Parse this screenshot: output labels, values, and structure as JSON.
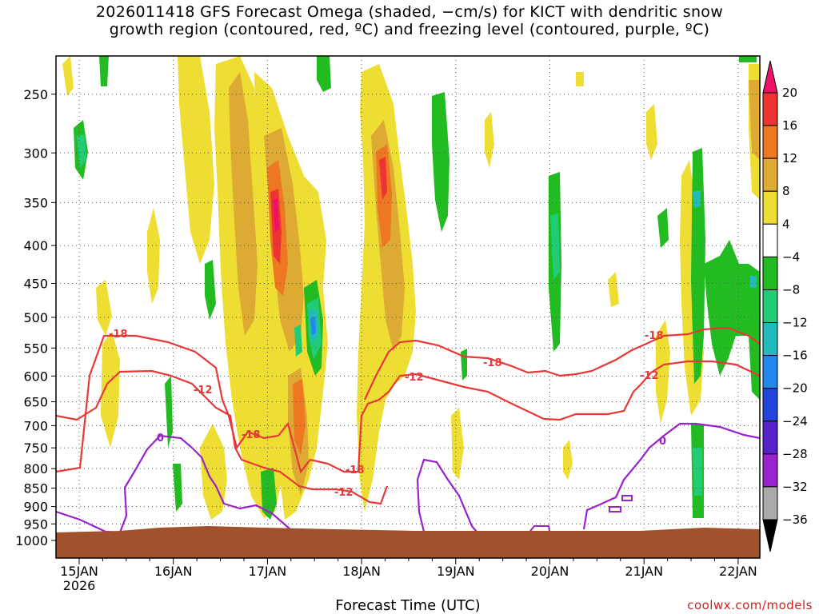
{
  "title_line1": "2026011418 GFS Forecast Omega (shaded, −cm/s) for KICT with dendritic snow",
  "title_line2": "growth region (contoured, red, ºC) and freezing level (contoured, purple, ºC)",
  "credit": "coolwx.com/models",
  "chart_data": {
    "type": "heatmap",
    "title": "2026011418 GFS Forecast Omega (shaded, −cm/s) for KICT with dendritic snow growth region (contoured, red, ºC) and freezing level (contoured, purple, ºC)",
    "xlabel": "Forecast Time (UTC)",
    "ylabel": "",
    "x_range": [
      "2026-01-14 18Z",
      "2026-01-22 06Z"
    ],
    "x_ticks": [
      "15JAN",
      "16JAN",
      "17JAN",
      "18JAN",
      "19JAN",
      "20JAN",
      "21JAN",
      "22JAN"
    ],
    "x_tick_sublabel": "2026",
    "y_axis": "pressure (hPa), inverted",
    "y_ticks": [
      250,
      300,
      350,
      400,
      450,
      500,
      550,
      600,
      650,
      700,
      750,
      800,
      850,
      900,
      950,
      1000
    ],
    "ylim": [
      1000,
      200
    ],
    "grid": true,
    "colorbar": {
      "labels": [
        20,
        16,
        12,
        8,
        4,
        -4,
        -8,
        -12,
        -16,
        -20,
        -24,
        -28,
        -32,
        -36
      ],
      "colors": [
        "#ee1166",
        "#ee3333",
        "#ee7722",
        "#ddaa33",
        "#eedd33",
        "#ffffff",
        "#22bb22",
        "#22cc77",
        "#22bbbb",
        "#2288ee",
        "#2244dd",
        "#5522cc",
        "#9922cc",
        "#aaaaaa",
        "#000000"
      ]
    },
    "contour_labels": [
      {
        "value": "-18",
        "color": "#e83838"
      },
      {
        "value": "-12",
        "color": "#e83838"
      },
      {
        "value": "-18",
        "color": "#e83838"
      },
      {
        "value": "-18",
        "color": "#e83838"
      },
      {
        "value": "-12",
        "color": "#e83838"
      },
      {
        "value": "-12",
        "color": "#e83838"
      },
      {
        "value": "-18",
        "color": "#e83838"
      },
      {
        "value": "-18",
        "color": "#e83838"
      },
      {
        "value": "-12",
        "color": "#e83838"
      },
      {
        "value": "0",
        "color": "#9922cc"
      },
      {
        "value": "0",
        "color": "#9922cc"
      }
    ]
  }
}
